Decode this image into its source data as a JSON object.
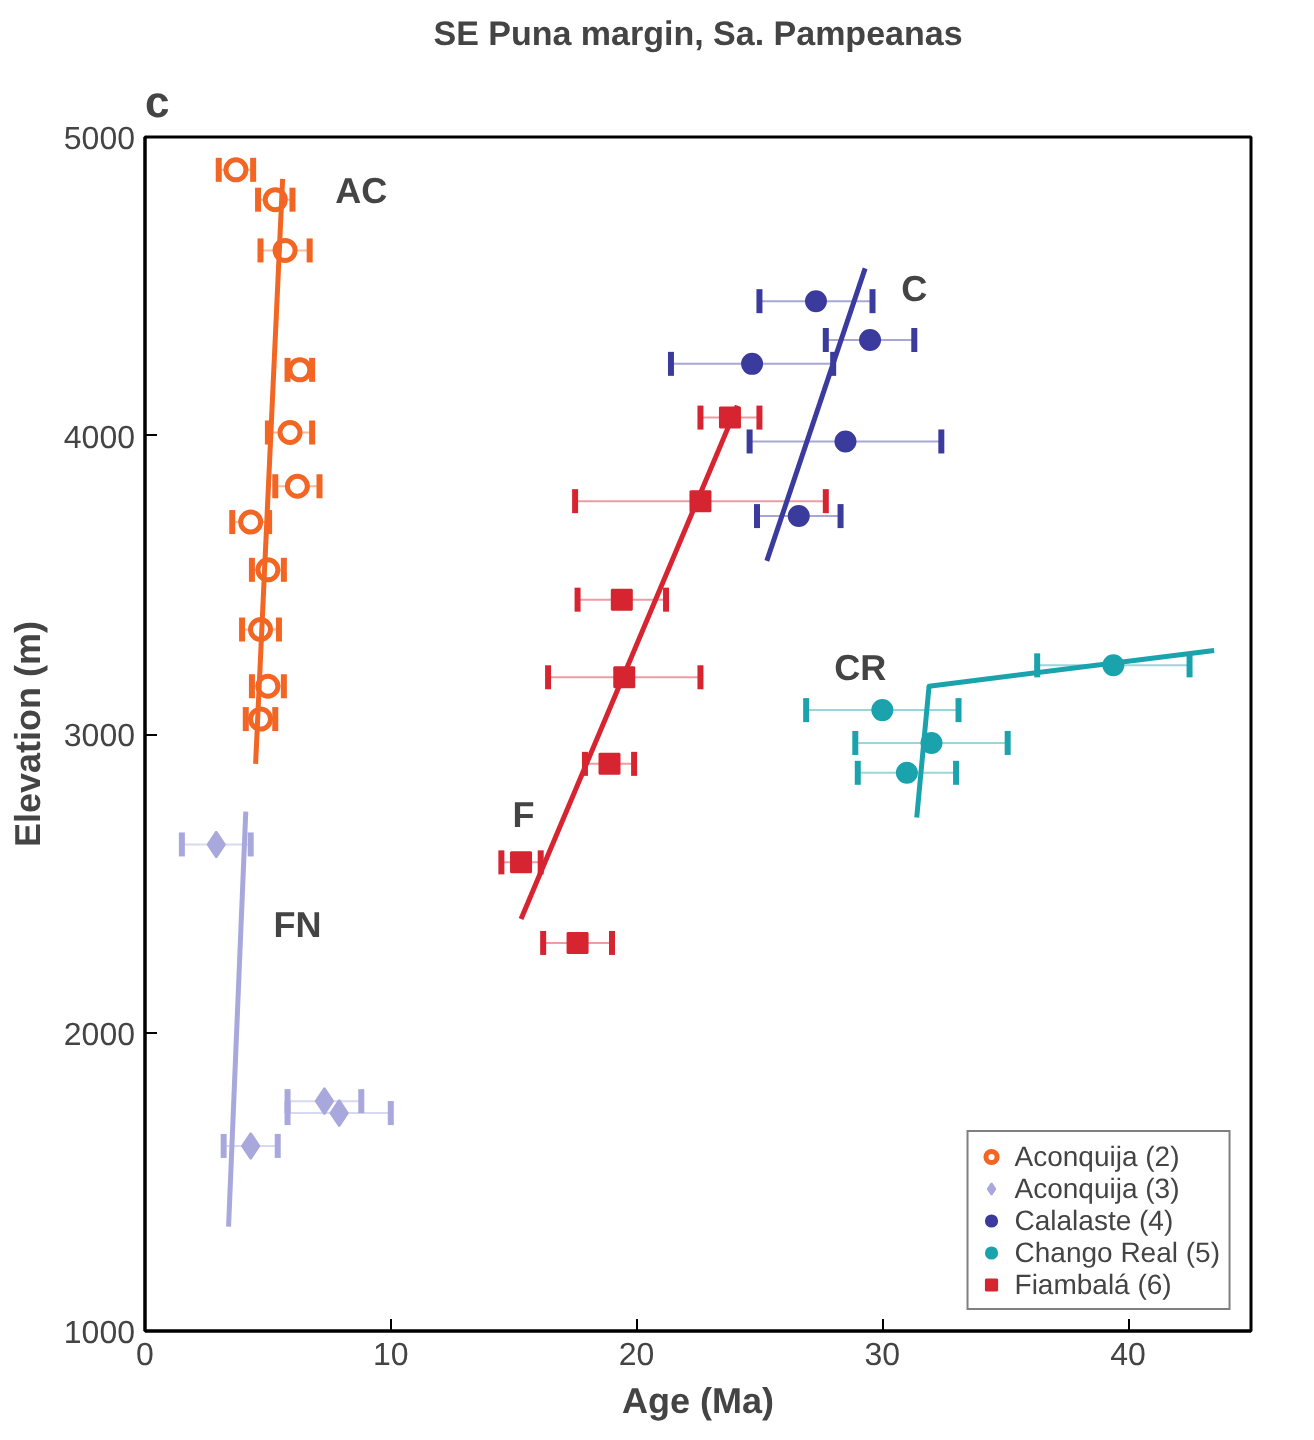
{
  "chart_data": {
    "type": "scatter",
    "title": "SE Puna margin, Sa. Pampeanas",
    "xlabel": "Age (Ma)",
    "ylabel": "Elevation (m)",
    "xlim": [
      0,
      45
    ],
    "xticks": [
      0,
      10,
      20,
      30,
      40
    ],
    "ylim": [
      1000,
      5000
    ],
    "yticks": [
      1000,
      2000,
      3000,
      4000,
      5000
    ],
    "grid": false,
    "legend": "bottom right",
    "annotations": [
      "c",
      "AC",
      "FN",
      "F",
      "C",
      "CR"
    ],
    "series": [
      {
        "name": "Aconquija (2)",
        "color": "#f26522",
        "marker": "circle",
        "x": [
          3.7,
          5.3,
          5.7,
          6.3,
          5.9,
          6.2,
          4.3,
          5.0,
          4.7,
          5.0,
          4.7
        ],
        "values": [
          4890,
          4790,
          4620,
          4220,
          4010,
          3830,
          3710,
          3550,
          3350,
          3160,
          3050
        ],
        "xerrors": [
          0.7,
          0.7,
          1.0,
          0.5,
          0.9,
          0.9,
          0.75,
          0.65,
          0.75,
          0.65,
          0.6
        ]
      },
      {
        "name": "Aconquija (3)",
        "color": "#a8a8dd",
        "marker": "diamond",
        "x": [
          2.9,
          4.3,
          7.3,
          7.9
        ],
        "values": [
          2630,
          1620,
          1770,
          1730
        ],
        "xerrors": [
          1.4,
          1.1,
          1.5,
          2.1
        ]
      },
      {
        "name": "Calalaste (4)",
        "color": "#3b3b9e",
        "marker": "circle",
        "x": [
          27.3,
          29.5,
          24.7,
          28.5,
          26.6
        ],
        "values": [
          4450,
          4320,
          4240,
          3980,
          3730
        ],
        "xerrors": [
          2.3,
          1.8,
          3.3,
          3.9,
          1.7
        ]
      },
      {
        "name": "Chango Real (5)",
        "color": "#1aa3ad",
        "marker": "circle",
        "x": [
          30.0,
          32.0,
          31.0,
          39.4
        ],
        "values": [
          3080,
          2970,
          2870,
          3230
        ],
        "xerrors": [
          3.1,
          3.1,
          2.0,
          3.1
        ]
      },
      {
        "name": "Fiambalá (6)",
        "color": "#d62430",
        "marker": "square",
        "x": [
          23.8,
          22.6,
          19.4,
          19.5,
          18.9,
          15.3,
          17.6
        ],
        "values": [
          4060,
          3780,
          3450,
          3190,
          2900,
          2570,
          2300
        ],
        "xerrors": [
          1.2,
          5.1,
          1.8,
          3.1,
          1.0,
          0.8,
          1.4
        ]
      },
      {
        "type": "line",
        "color": "#f26522",
        "x": [
          4.5,
          5.6
        ],
        "values": [
          2900,
          4860
        ]
      },
      {
        "type": "line",
        "color": "#a8a8dd",
        "x": [
          3.4,
          4.1
        ],
        "values": [
          1350,
          2740
        ]
      },
      {
        "type": "line",
        "color": "#3b3b9e",
        "x": [
          25.3,
          29.3
        ],
        "values": [
          3580,
          4560
        ]
      },
      {
        "type": "line",
        "color": "#1aa3ad",
        "x": [
          31.4,
          31.9,
          43.5
        ],
        "values": [
          2720,
          3160,
          3280
        ]
      },
      {
        "type": "line",
        "color": "#d62430",
        "x": [
          15.3,
          24.1
        ],
        "values": [
          2380,
          4100
        ]
      }
    ]
  }
}
